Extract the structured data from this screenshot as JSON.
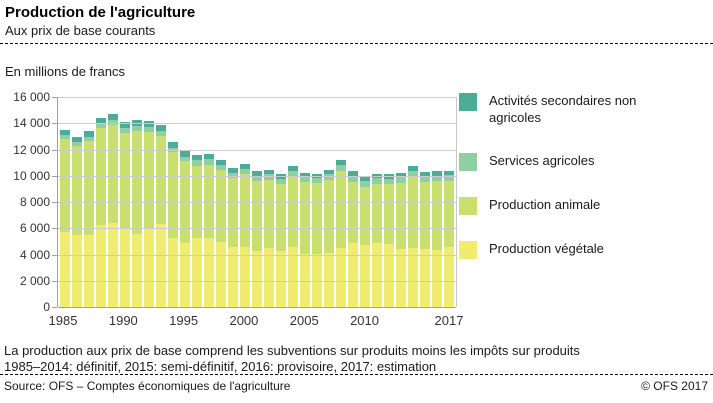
{
  "header": {
    "title": "Production de l'agriculture",
    "subtitle": "Aux prix de base courants"
  },
  "chart": {
    "unit_label": "En millions de francs"
  },
  "chart_data": {
    "type": "bar",
    "stacked": true,
    "title": "Production de l'agriculture, aux prix de base courants",
    "ylabel": "En millions de francs",
    "xlabel": "",
    "grid": true,
    "legend_position": "right",
    "ylim": [
      0,
      16000
    ],
    "x": [
      1985,
      1986,
      1987,
      1988,
      1989,
      1990,
      1991,
      1992,
      1993,
      1994,
      1995,
      1996,
      1997,
      1998,
      1999,
      2000,
      2001,
      2002,
      2003,
      2004,
      2005,
      2006,
      2007,
      2008,
      2009,
      2010,
      2011,
      2012,
      2013,
      2014,
      2015,
      2016,
      2017
    ],
    "series": [
      {
        "name": "Production végétale",
        "color": "#f0ec6e",
        "values": [
          5700,
          5450,
          5500,
          6250,
          6400,
          6000,
          5550,
          5950,
          6300,
          5250,
          4870,
          5250,
          5250,
          4940,
          4600,
          4600,
          4230,
          4490,
          4230,
          4600,
          4030,
          4030,
          4100,
          4500,
          4870,
          4720,
          4850,
          4780,
          4420,
          4470,
          4420,
          4340,
          4600
        ]
      },
      {
        "name": "Production animale",
        "color": "#c9e06d",
        "values": [
          7110,
          6830,
          7160,
          7370,
          7480,
          7270,
          7850,
          7400,
          6760,
          6540,
          6280,
          5470,
          5580,
          5470,
          5230,
          5540,
          5370,
          5210,
          5140,
          5360,
          5470,
          5390,
          5600,
          5890,
          4680,
          4450,
          4550,
          4560,
          5050,
          5490,
          5110,
          5230,
          5030
        ]
      },
      {
        "name": "Services agricoles",
        "color": "#8ecfa4",
        "values": [
          310,
          330,
          310,
          360,
          400,
          380,
          380,
          380,
          380,
          340,
          300,
          460,
          460,
          440,
          400,
          410,
          410,
          410,
          400,
          430,
          400,
          400,
          410,
          410,
          410,
          400,
          410,
          410,
          410,
          410,
          410,
          410,
          410
        ]
      },
      {
        "name": "Activités secondaires non agricoles",
        "color": "#4dab9a",
        "values": [
          400,
          360,
          430,
          440,
          440,
          430,
          460,
          430,
          460,
          430,
          430,
          380,
          380,
          380,
          380,
          380,
          330,
          360,
          330,
          380,
          340,
          340,
          360,
          380,
          380,
          360,
          360,
          350,
          340,
          350,
          360,
          350,
          360
        ]
      }
    ],
    "ytick_labels": [
      "16 000",
      "14 000",
      "12 000",
      "10 000",
      "8 000",
      "6 000",
      "4 000",
      "2 000",
      "0"
    ],
    "xtick_labels": [
      "1985",
      "1990",
      "1995",
      "2000",
      "2005",
      "2010",
      "2017"
    ],
    "xtick_indices": [
      0,
      5,
      10,
      15,
      20,
      25,
      32
    ]
  },
  "footnotes": {
    "line1": "La production aux prix de base comprend les subventions sur produits moins les impôts sur produits",
    "line2": "1985–2014: définitif, 2015: semi-définitif, 2016: provisoire, 2017: estimation"
  },
  "footer": {
    "source": "Source: OFS – Comptes économiques de l'agriculture",
    "copyright": "© OFS  2017"
  }
}
